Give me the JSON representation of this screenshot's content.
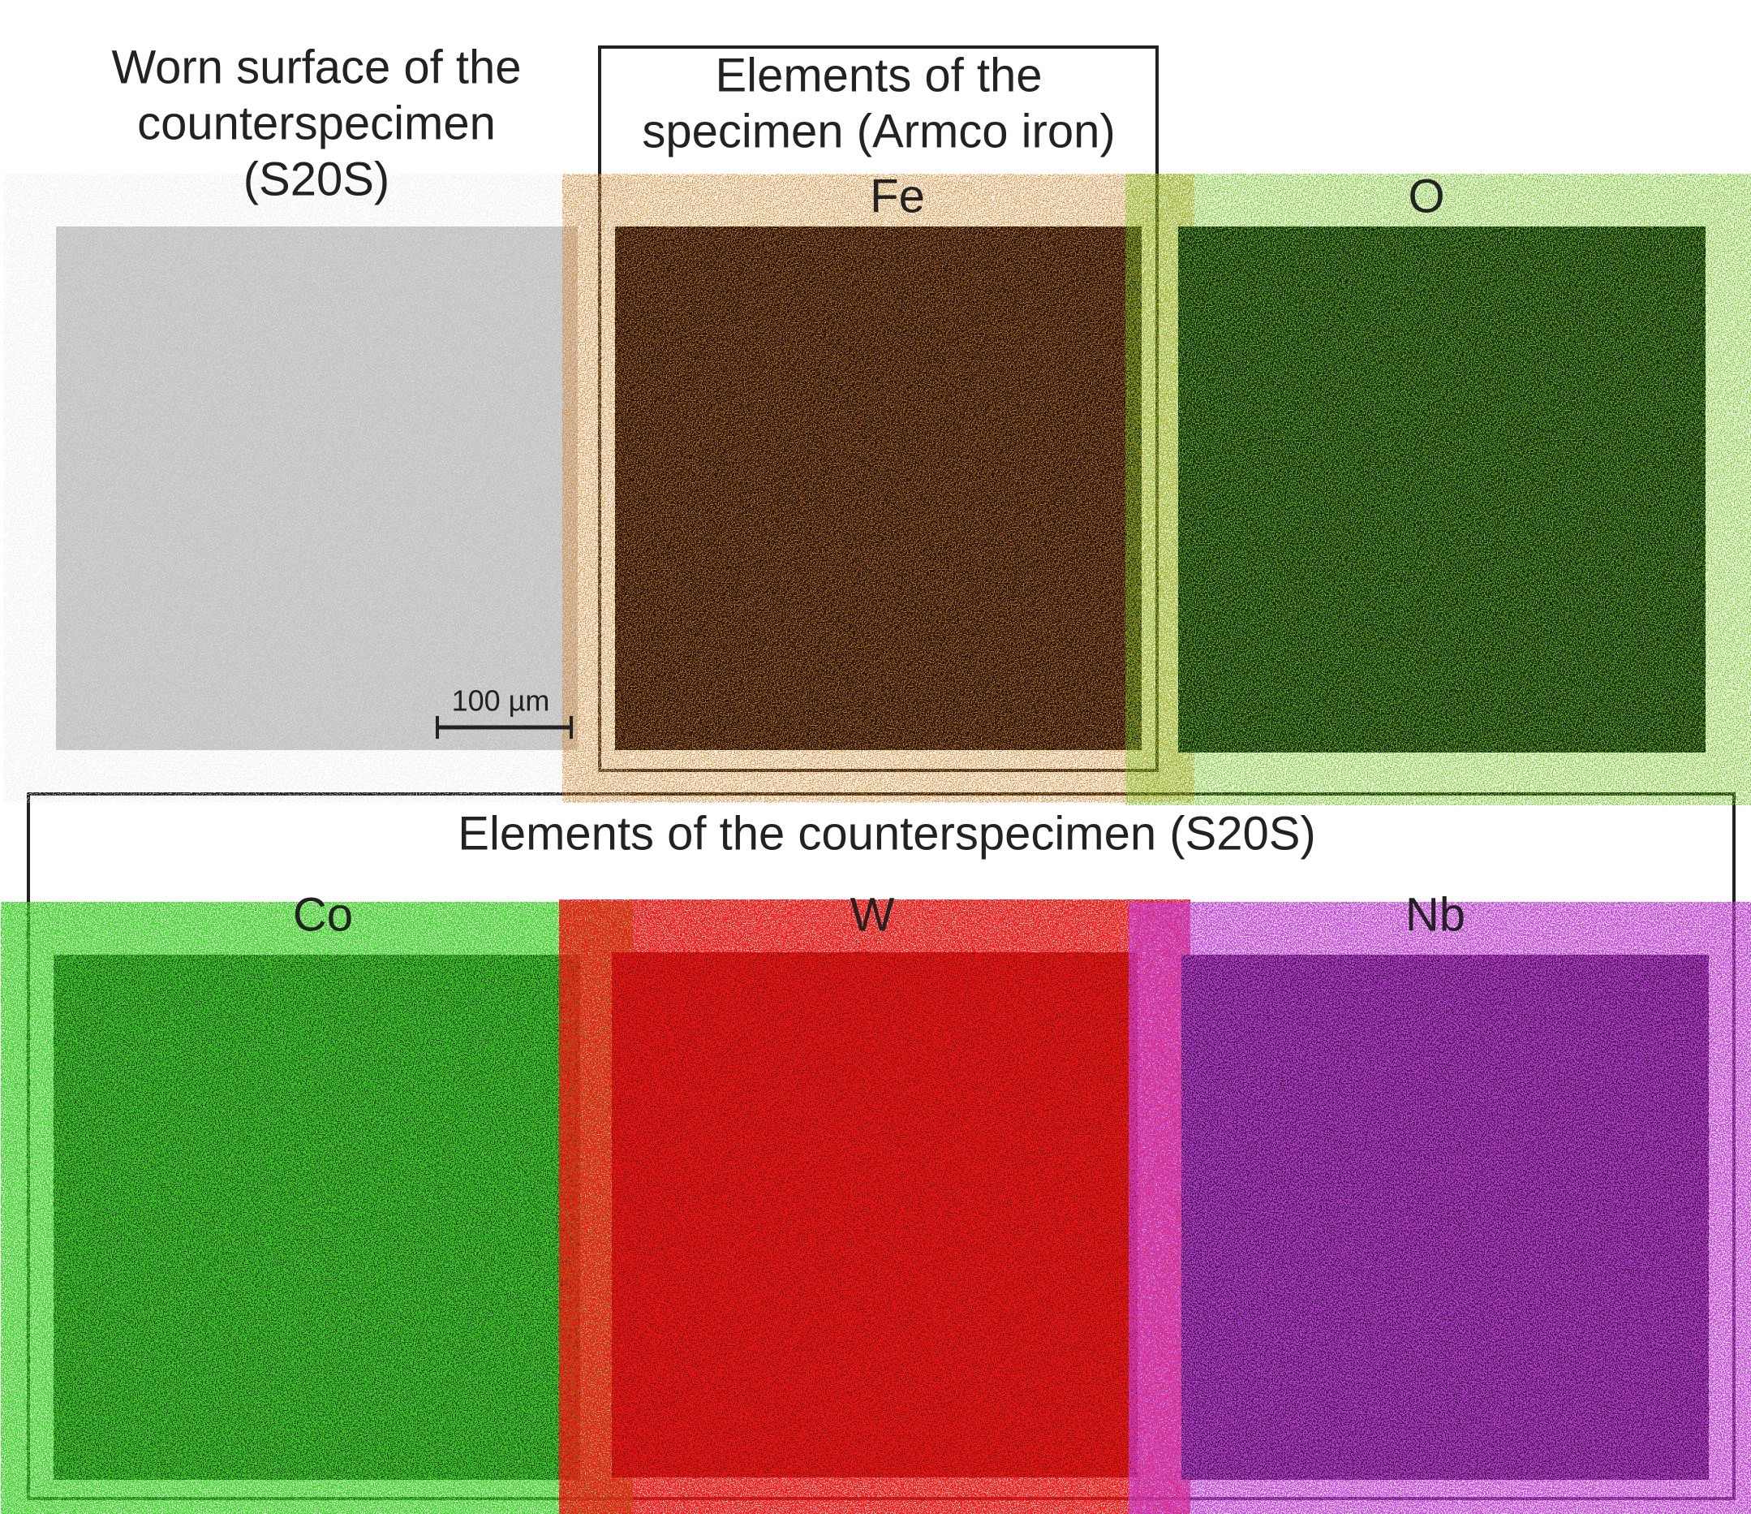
{
  "sem_panel": {
    "title": [
      "Worn surface of the",
      "counterspecimen",
      "(S20S)"
    ],
    "scale_bar": "100 µm"
  },
  "specimen_box": {
    "title": [
      "Elements of the",
      "specimen (Armco iron)"
    ],
    "maps": [
      "Fe"
    ]
  },
  "oxygen_map": "O",
  "counterspecimen_box": {
    "title": "Elements of the counterspecimen (S20S)",
    "maps": [
      "Co",
      "W",
      "Nb"
    ]
  }
}
